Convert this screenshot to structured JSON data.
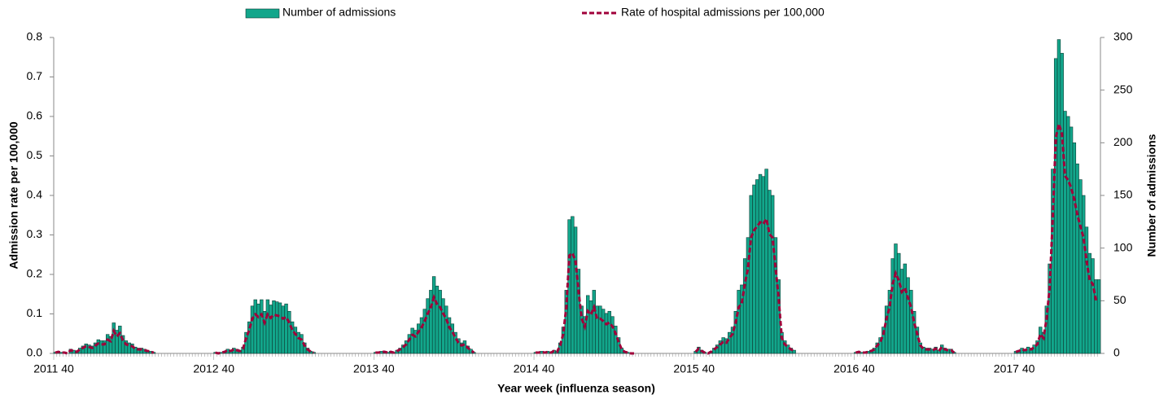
{
  "chart_data": {
    "type": "combo",
    "xlabel": "Year week (influenza season)",
    "ylabel": "Admission rate per 100,000",
    "y2label": "Number of admissions",
    "legend": "top",
    "ylim": [
      0,
      0.8
    ],
    "yticks": [
      {
        "value": 0,
        "label": "0.0"
      },
      0.1,
      0.2,
      0.3,
      0.4,
      0.5,
      0.6,
      0.7,
      0.8
    ],
    "y2lim": [
      0,
      300
    ],
    "y2ticks": [
      0,
      50,
      100,
      150,
      200,
      250,
      300
    ],
    "categories": [
      "2011 40",
      null,
      null,
      null,
      null,
      null,
      null,
      null,
      null,
      null,
      null,
      null,
      null,
      null,
      null,
      null,
      null,
      null,
      null,
      null,
      null,
      null,
      null,
      null,
      null,
      null,
      null,
      null,
      null,
      null,
      null,
      null,
      null,
      null,
      null,
      null,
      null,
      null,
      null,
      null,
      null,
      null,
      null,
      null,
      null,
      null,
      null,
      null,
      null,
      null,
      null,
      null,
      "2012 40",
      null,
      null,
      null,
      null,
      null,
      null,
      null,
      null,
      null,
      null,
      null,
      null,
      null,
      null,
      null,
      null,
      null,
      null,
      null,
      null,
      null,
      null,
      null,
      null,
      null,
      null,
      null,
      null,
      null,
      null,
      null,
      null,
      null,
      null,
      null,
      null,
      null,
      null,
      null,
      null,
      null,
      null,
      null,
      null,
      null,
      null,
      null,
      null,
      null,
      null,
      null,
      "2013 40",
      null,
      null,
      null,
      null,
      null,
      null,
      null,
      null,
      null,
      null,
      null,
      null,
      null,
      null,
      null,
      null,
      null,
      null,
      null,
      null,
      null,
      null,
      null,
      null,
      null,
      null,
      null,
      null,
      null,
      null,
      null,
      null,
      null,
      null,
      null,
      null,
      null,
      null,
      null,
      null,
      null,
      null,
      null,
      null,
      null,
      null,
      null,
      null,
      null,
      null,
      null,
      "2014 40",
      null,
      null,
      null,
      null,
      null,
      null,
      null,
      null,
      null,
      null,
      null,
      null,
      null,
      null,
      null,
      null,
      null,
      null,
      null,
      null,
      null,
      null,
      null,
      null,
      null,
      null,
      null,
      null,
      null,
      null,
      null,
      null,
      null,
      null,
      null,
      null,
      null,
      null,
      null,
      null,
      null,
      null,
      null,
      null,
      null,
      null,
      null,
      null,
      null,
      null,
      null,
      "2015 40",
      null,
      null,
      null,
      null,
      null,
      null,
      null,
      null,
      null,
      null,
      null,
      null,
      null,
      null,
      null,
      null,
      null,
      null,
      null,
      null,
      null,
      null,
      null,
      null,
      null,
      null,
      null,
      null,
      null,
      null,
      null,
      null,
      null,
      null,
      null,
      null,
      null,
      null,
      null,
      null,
      null,
      null,
      null,
      null,
      null,
      null,
      null,
      null,
      null,
      null,
      null,
      "2016 40",
      null,
      null,
      null,
      null,
      null,
      null,
      null,
      null,
      null,
      null,
      null,
      null,
      null,
      null,
      null,
      null,
      null,
      null,
      null,
      null,
      null,
      null,
      null,
      null,
      null,
      null,
      null,
      null,
      null,
      null,
      null,
      null,
      null,
      null,
      null,
      null,
      null,
      null,
      null,
      null,
      null,
      null,
      null,
      null,
      null,
      null,
      null,
      null,
      null,
      null,
      null,
      "2017 40",
      null,
      null,
      null,
      null,
      null,
      null,
      null,
      null,
      null,
      null,
      null,
      null,
      null,
      null,
      null,
      null,
      null,
      null,
      null,
      null,
      null,
      null,
      null,
      null,
      null,
      null,
      null
    ],
    "series": [
      {
        "name": "Number of admissions",
        "type": "bar",
        "axis": "y2",
        "color": "#12a68b",
        "values": [
          1,
          2,
          1,
          1,
          0,
          4,
          3,
          2,
          5,
          7,
          9,
          8,
          7,
          10,
          13,
          12,
          12,
          18,
          16,
          29,
          22,
          26,
          17,
          12,
          10,
          9,
          6,
          5,
          5,
          4,
          3,
          2,
          1,
          null,
          null,
          null,
          null,
          null,
          null,
          null,
          null,
          null,
          null,
          null,
          null,
          null,
          null,
          null,
          null,
          null,
          null,
          null,
          1,
          0,
          1,
          2,
          4,
          3,
          5,
          4,
          3,
          6,
          20,
          30,
          45,
          51,
          47,
          51,
          40,
          51,
          46,
          50,
          49,
          48,
          45,
          47,
          40,
          30,
          25,
          20,
          18,
          10,
          5,
          2,
          1,
          null,
          null,
          null,
          null,
          null,
          null,
          null,
          null,
          null,
          null,
          null,
          null,
          null,
          null,
          null,
          null,
          null,
          null,
          null,
          1,
          1,
          2,
          2,
          1,
          2,
          1,
          3,
          5,
          8,
          12,
          18,
          24,
          22,
          28,
          34,
          42,
          52,
          60,
          73,
          64,
          60,
          52,
          45,
          34,
          28,
          20,
          14,
          10,
          12,
          7,
          4,
          1,
          null,
          null,
          null,
          null,
          null,
          null,
          null,
          null,
          null,
          null,
          null,
          null,
          null,
          null,
          null,
          null,
          null,
          null,
          null,
          1,
          1,
          2,
          1,
          2,
          1,
          3,
          2,
          10,
          25,
          60,
          127,
          130,
          120,
          80,
          45,
          35,
          55,
          50,
          60,
          45,
          45,
          42,
          38,
          40,
          35,
          26,
          15,
          5,
          2,
          1,
          0,
          0,
          null,
          null,
          null,
          null,
          null,
          null,
          null,
          null,
          null,
          null,
          null,
          null,
          null,
          null,
          null,
          null,
          null,
          null,
          null,
          2,
          6,
          3,
          1,
          0,
          2,
          5,
          8,
          12,
          15,
          14,
          20,
          25,
          40,
          60,
          65,
          90,
          110,
          150,
          160,
          165,
          170,
          168,
          175,
          155,
          150,
          110,
          70,
          20,
          12,
          8,
          5,
          3,
          null,
          null,
          null,
          null,
          null,
          null,
          null,
          null,
          null,
          null,
          null,
          null,
          null,
          null,
          null,
          null,
          null,
          null,
          null,
          1,
          2,
          1,
          1,
          2,
          3,
          5,
          10,
          15,
          25,
          45,
          60,
          90,
          104,
          95,
          80,
          85,
          72,
          60,
          40,
          25,
          10,
          6,
          5,
          5,
          4,
          6,
          3,
          8,
          5,
          4,
          4,
          1,
          null,
          null,
          null,
          null,
          null,
          null,
          null,
          null,
          null,
          null,
          null,
          null,
          null,
          null,
          null,
          null,
          null,
          null,
          null,
          2,
          3,
          5,
          4,
          6,
          5,
          8,
          12,
          25,
          20,
          45,
          85,
          175,
          280,
          298,
          285,
          230,
          225,
          215,
          200,
          180,
          165,
          150,
          120,
          95,
          90,
          70,
          70
        ]
      },
      {
        "name": "Rate of hospital admissions per 100,000",
        "type": "line",
        "axis": "y",
        "color": "#a0003a",
        "dashed": true,
        "values": [
          0.002,
          0.004,
          0.002,
          0.002,
          0,
          0.008,
          0.006,
          0.004,
          0.01,
          0.014,
          0.018,
          0.016,
          0.014,
          0.02,
          0.025,
          0.023,
          0.023,
          0.035,
          0.031,
          0.057,
          0.043,
          0.051,
          0.033,
          0.023,
          0.02,
          0.018,
          0.012,
          0.01,
          0.01,
          0.008,
          0.006,
          0.004,
          0.002,
          null,
          null,
          null,
          null,
          null,
          null,
          null,
          null,
          null,
          null,
          null,
          null,
          null,
          null,
          null,
          null,
          null,
          null,
          null,
          0.002,
          0,
          0.002,
          0.004,
          0.008,
          0.006,
          0.01,
          0.008,
          0.006,
          0.012,
          0.039,
          0.059,
          0.088,
          0.099,
          0.092,
          0.099,
          0.078,
          0.099,
          0.09,
          0.098,
          0.096,
          0.094,
          0.088,
          0.092,
          0.078,
          0.059,
          0.049,
          0.039,
          0.035,
          0.02,
          0.01,
          0.004,
          0.002,
          null,
          null,
          null,
          null,
          null,
          null,
          null,
          null,
          null,
          null,
          null,
          null,
          null,
          null,
          null,
          null,
          null,
          null,
          null,
          0.002,
          0.002,
          0.004,
          0.004,
          0.002,
          0.004,
          0.002,
          0.006,
          0.01,
          0.016,
          0.023,
          0.035,
          0.047,
          0.043,
          0.055,
          0.066,
          0.082,
          0.101,
          0.117,
          0.142,
          0.125,
          0.117,
          0.101,
          0.088,
          0.066,
          0.055,
          0.039,
          0.027,
          0.02,
          0.023,
          0.014,
          0.008,
          0.002,
          null,
          null,
          null,
          null,
          null,
          null,
          null,
          null,
          null,
          null,
          null,
          null,
          null,
          null,
          null,
          null,
          null,
          null,
          null,
          0.002,
          0.002,
          0.004,
          0.002,
          0.004,
          0.002,
          0.006,
          0.004,
          0.02,
          0.049,
          0.117,
          0.248,
          0.254,
          0.234,
          0.156,
          0.088,
          0.068,
          0.107,
          0.098,
          0.117,
          0.088,
          0.088,
          0.082,
          0.074,
          0.078,
          0.068,
          0.051,
          0.029,
          0.01,
          0.004,
          0.002,
          0,
          0,
          null,
          null,
          null,
          null,
          null,
          null,
          null,
          null,
          null,
          null,
          null,
          null,
          null,
          null,
          null,
          null,
          null,
          null,
          null,
          0.004,
          0.012,
          0.006,
          0.002,
          0,
          0.004,
          0.01,
          0.016,
          0.023,
          0.029,
          0.027,
          0.039,
          0.049,
          0.078,
          0.117,
          0.127,
          0.176,
          0.215,
          0.293,
          0.312,
          0.322,
          0.332,
          0.328,
          0.341,
          0.302,
          0.293,
          0.215,
          0.137,
          0.039,
          0.023,
          0.016,
          0.01,
          0.006,
          null,
          null,
          null,
          null,
          null,
          null,
          null,
          null,
          null,
          null,
          null,
          null,
          null,
          null,
          null,
          null,
          null,
          null,
          null,
          0.002,
          0.004,
          0.002,
          0.002,
          0.004,
          0.006,
          0.01,
          0.02,
          0.029,
          0.049,
          0.088,
          0.117,
          0.176,
          0.203,
          0.185,
          0.156,
          0.166,
          0.14,
          0.117,
          0.078,
          0.049,
          0.02,
          0.012,
          0.01,
          0.01,
          0.008,
          0.012,
          0.006,
          0.016,
          0.01,
          0.008,
          0.008,
          0.002,
          null,
          null,
          null,
          null,
          null,
          null,
          null,
          null,
          null,
          null,
          null,
          null,
          null,
          null,
          null,
          null,
          null,
          null,
          null,
          0.004,
          0.006,
          0.01,
          0.008,
          0.012,
          0.01,
          0.016,
          0.023,
          0.049,
          0.039,
          0.088,
          0.166,
          0.341,
          0.546,
          0.581,
          0.556,
          0.449,
          0.439,
          0.419,
          0.39,
          0.351,
          0.322,
          0.293,
          0.234,
          0.185,
          0.176,
          0.137,
          0.137
        ]
      }
    ]
  }
}
